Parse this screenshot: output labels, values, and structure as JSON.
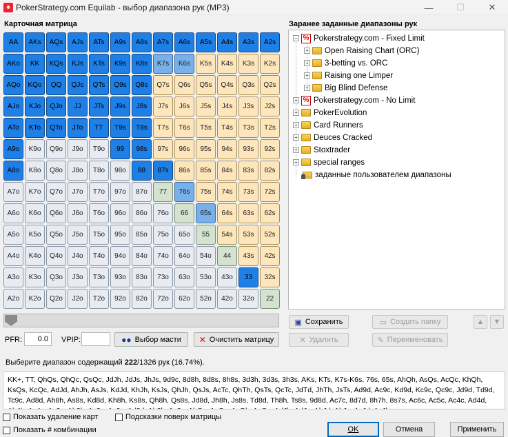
{
  "window": {
    "title": "PokerStrategy.com Equilab - выбор диапазона рук (MP3)",
    "minimize": "—",
    "maximize": "☐",
    "close": "✕"
  },
  "matrix": {
    "label": "Карточная матрица",
    "cells": [
      [
        "AA",
        "AKs",
        "AQs",
        "AJs",
        "ATs",
        "A9s",
        "A8s",
        "A7s",
        "A6s",
        "A5s",
        "A4s",
        "A3s",
        "A2s"
      ],
      [
        "AKo",
        "KK",
        "KQs",
        "KJs",
        "KTs",
        "K9s",
        "K8s",
        "K7s",
        "K6s",
        "K5s",
        "K4s",
        "K3s",
        "K2s"
      ],
      [
        "AQo",
        "KQo",
        "QQ",
        "QJs",
        "QTs",
        "Q9s",
        "Q8s",
        "Q7s",
        "Q6s",
        "Q5s",
        "Q4s",
        "Q3s",
        "Q2s"
      ],
      [
        "AJo",
        "KJo",
        "QJo",
        "JJ",
        "JTs",
        "J9s",
        "J8s",
        "J7s",
        "J6s",
        "J5s",
        "J4s",
        "J3s",
        "J2s"
      ],
      [
        "ATo",
        "KTo",
        "QTo",
        "JTo",
        "TT",
        "T9s",
        "T8s",
        "T7s",
        "T6s",
        "T5s",
        "T4s",
        "T3s",
        "T2s"
      ],
      [
        "A9o",
        "K9o",
        "Q9o",
        "J9o",
        "T9o",
        "99",
        "98s",
        "97s",
        "96s",
        "95s",
        "94s",
        "93s",
        "92s"
      ],
      [
        "A8o",
        "K8o",
        "Q8o",
        "J8o",
        "T8o",
        "98o",
        "88",
        "87s",
        "86s",
        "85s",
        "84s",
        "83s",
        "82s"
      ],
      [
        "A7o",
        "K7o",
        "Q7o",
        "J7o",
        "T7o",
        "97o",
        "87o",
        "77",
        "76s",
        "75s",
        "74s",
        "73s",
        "72s"
      ],
      [
        "A6o",
        "K6o",
        "Q6o",
        "J6o",
        "T6o",
        "96o",
        "86o",
        "76o",
        "66",
        "65s",
        "64s",
        "63s",
        "62s"
      ],
      [
        "A5o",
        "K5o",
        "Q5o",
        "J5o",
        "T5o",
        "95o",
        "85o",
        "75o",
        "65o",
        "55",
        "54s",
        "53s",
        "52s"
      ],
      [
        "A4o",
        "K4o",
        "Q4o",
        "J4o",
        "T4o",
        "94o",
        "84o",
        "74o",
        "64o",
        "54o",
        "44",
        "43s",
        "42s"
      ],
      [
        "A3o",
        "K3o",
        "Q3o",
        "J3o",
        "T3o",
        "93o",
        "83o",
        "73o",
        "63o",
        "53o",
        "43o",
        "33",
        "32s"
      ],
      [
        "A2o",
        "K2o",
        "Q2o",
        "J2o",
        "T2o",
        "92o",
        "82o",
        "72o",
        "62o",
        "52o",
        "42o",
        "32o",
        "22"
      ]
    ],
    "selected": [
      "AA",
      "AKs",
      "AQs",
      "AJs",
      "ATs",
      "A9s",
      "A8s",
      "A7s",
      "A6s",
      "A5s",
      "A4s",
      "A3s",
      "A2s",
      "AKo",
      "KK",
      "KQs",
      "KJs",
      "KTs",
      "K9s",
      "K8s",
      "AQo",
      "KQo",
      "QQ",
      "QJs",
      "QTs",
      "Q9s",
      "Q8s",
      "AJo",
      "KJo",
      "QJo",
      "JJ",
      "JTs",
      "J9s",
      "J8s",
      "ATo",
      "KTo",
      "QTo",
      "JTo",
      "TT",
      "T9s",
      "T8s",
      "A9o",
      "99",
      "98s",
      "A8o",
      "88",
      "87s",
      "33"
    ],
    "partial": [
      "K7s",
      "K6s",
      "76s",
      "65s"
    ],
    "colors": {
      "selected": "#1e7fe6",
      "partial": "#7ab0ea",
      "pair": "#d4e2d0",
      "suited": "#fde6bb",
      "offsuit": "#e8ecf2"
    }
  },
  "stats": {
    "pfr_label": "PFR:",
    "pfr_value": "0.0",
    "vpip_label": "VPIP:",
    "vpip_value": ""
  },
  "buttons": {
    "select_suits": "Выбор масти",
    "clear_matrix": "Очистить матрицу"
  },
  "summary": {
    "prefix": "Выберите диапазон содержащий ",
    "count": "222",
    "suffix": "/1326 рук (16.74%)."
  },
  "hands_text": "KK+, TT, QhQs, QhQc, QsQc, JdJh, JdJs, JhJs, 9d9c, 8d8h, 8d8s, 8h8s, 3d3h, 3d3s, 3h3s, AKs, KTs, K7s-K6s, 76s, 65s, AhQh, AsQs, AcQc, KhQh, KsQs, KcQc, AdJd, AhJh, AsJs, KdJd, KhJh, KsJs, QhJh, QsJs, AcTc, QhTh, QsTs, QcTc, JdTd, JhTh, JsTs, Ad9d, Ac9c, Kd9d, Kc9c, Qc9c, Jd9d, Td9d, Tc9c, Ad8d, Ah8h, As8s, Kd8d, Kh8h, Ks8s, Qh8h, Qs8s, Jd8d, Jh8h, Js8s, Td8d, Th8h, Ts8s, 9d8d, Ac7c, 8d7d, 8h7h, 8s7s, Ac6c, Ac5c, Ac4c, Ad4d, Ah4h, As4s, Ac3c, Ah3h, As3s, Ac2c, Ad2d, Ah2h, As2s, AhQc, AsQc, AcQh, AcQs, AdJh, AdJs, AhJd, AhJs, AsJd, AsJh",
  "checkboxes": {
    "show_removal": "Показать удаление карт",
    "hints_over": "Подсказки поверх матрицы",
    "show_combos": "Показать # комбинации"
  },
  "presets": {
    "label": "Заранее заданные диапазоны рук",
    "items": [
      {
        "label": "Pokerstrategy.com - Fixed Limit",
        "icon": "ps-icon",
        "level": 0,
        "expanded": true
      },
      {
        "label": "Open Raising Chart (ORC)",
        "icon": "folder-icon",
        "level": 1
      },
      {
        "label": "3-betting vs. ORC",
        "icon": "folder-icon",
        "level": 1
      },
      {
        "label": "Raising one Limper",
        "icon": "folder-icon",
        "level": 1
      },
      {
        "label": "Big Blind Defense",
        "icon": "folder-icon",
        "level": 1
      },
      {
        "label": "Pokerstrategy.com - No Limit",
        "icon": "ps-icon",
        "level": 0
      },
      {
        "label": "PokerEvolution",
        "icon": "folder-icon",
        "level": 0
      },
      {
        "label": "Card Runners",
        "icon": "folder-icon",
        "level": 0
      },
      {
        "label": "Deuces Cracked",
        "icon": "folder-icon",
        "level": 0
      },
      {
        "label": "Stoxtrader",
        "icon": "folder-icon",
        "level": 0
      },
      {
        "label": "special ranges",
        "icon": "folder-icon",
        "level": 0
      },
      {
        "label": "заданные пользователем диапазоны",
        "icon": "user-folder-icon",
        "level": 0
      }
    ]
  },
  "preset_buttons": {
    "save": "Сохранить",
    "create_folder": "Создать папку",
    "delete": "Удалить",
    "rename": "Переименовать"
  },
  "dialog_buttons": {
    "ok": "OK",
    "cancel": "Отмена",
    "apply": "Применить"
  }
}
